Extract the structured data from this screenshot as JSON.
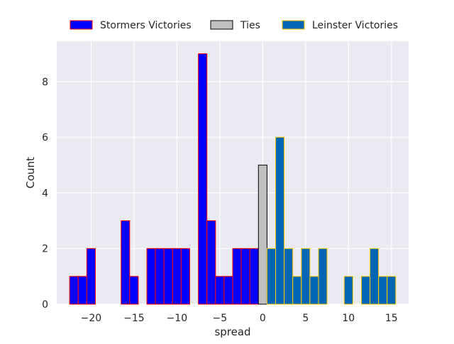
{
  "chart_data": {
    "type": "bar",
    "subtype": "histogram",
    "xlabel": "spread",
    "ylabel": "Count",
    "xlim": [
      -24,
      17
    ],
    "ylim": [
      0,
      9.45
    ],
    "x_ticks": [
      {
        "value": -20,
        "label": "−20"
      },
      {
        "value": -15,
        "label": "−15"
      },
      {
        "value": -10,
        "label": "−10"
      },
      {
        "value": -5,
        "label": "−5"
      },
      {
        "value": 0,
        "label": "0"
      },
      {
        "value": 5,
        "label": "5"
      },
      {
        "value": 10,
        "label": "10"
      },
      {
        "value": 15,
        "label": "15"
      }
    ],
    "y_ticks": [
      {
        "value": 0,
        "label": "0"
      },
      {
        "value": 2,
        "label": "2"
      },
      {
        "value": 4,
        "label": "4"
      },
      {
        "value": 6,
        "label": "6"
      },
      {
        "value": 8,
        "label": "8"
      }
    ],
    "grid": true,
    "background": "#eaeaf2",
    "legend_position": "top-center",
    "series": [
      {
        "name": "Stormers Victories",
        "fill": "#0000ff",
        "edge": "#ff0000",
        "x": [
          -22,
          -21,
          -20,
          -16,
          -15,
          -13,
          -12,
          -11,
          -10,
          -9,
          -7,
          -6,
          -5,
          -4,
          -3,
          -2,
          -1
        ],
        "values": [
          1,
          1,
          2,
          3,
          1,
          2,
          2,
          2,
          2,
          2,
          9,
          3,
          1,
          1,
          2,
          2,
          2
        ]
      },
      {
        "name": "Ties",
        "fill": "#c0c0c0",
        "edge": "#000000",
        "x": [
          0
        ],
        "values": [
          5
        ]
      },
      {
        "name": "Leinster Victories",
        "fill": "#0066b3",
        "edge": "#ffcc00",
        "x": [
          1,
          2,
          3,
          4,
          5,
          6,
          7,
          10,
          12,
          13,
          14,
          15
        ],
        "values": [
          2,
          6,
          2,
          1,
          2,
          1,
          2,
          1,
          1,
          2,
          1,
          1
        ]
      }
    ]
  }
}
